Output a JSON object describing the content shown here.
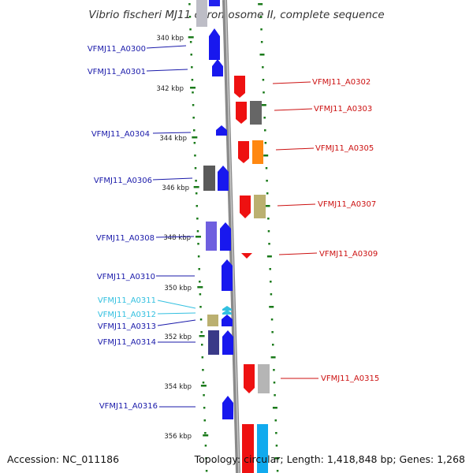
{
  "title": "Vibrio fischeri MJ11 chromosome II, complete sequence",
  "accession": "Accession: NC_011186",
  "summary": "Topology: circular; Length: 1,418,848 bp; Genes: 1,268",
  "colors": {
    "forward_label": "#1a1aaa",
    "reverse_label": "#cc1111",
    "highlight_label": "#33c0e0",
    "backbone": "#8a8a8a",
    "tick": "#1a7a1a"
  },
  "kbp_labels": [
    "340 kbp",
    "342 kbp",
    "344 kbp",
    "346 kbp",
    "348 kbp",
    "350 kbp",
    "352 kbp",
    "354 kbp",
    "356 kbp"
  ],
  "genes_left": [
    {
      "id": "VFMJ11_A0300"
    },
    {
      "id": "VFMJ11_A0301"
    },
    {
      "id": "VFMJ11_A0304"
    },
    {
      "id": "VFMJ11_A0306"
    },
    {
      "id": "VFMJ11_A0308"
    },
    {
      "id": "VFMJ11_A0310"
    },
    {
      "id": "VFMJ11_A0311"
    },
    {
      "id": "VFMJ11_A0312"
    },
    {
      "id": "VFMJ11_A0313"
    },
    {
      "id": "VFMJ11_A0314"
    },
    {
      "id": "VFMJ11_A0316"
    }
  ],
  "genes_right": [
    {
      "id": "VFMJ11_A0302"
    },
    {
      "id": "VFMJ11_A0303"
    },
    {
      "id": "VFMJ11_A0305"
    },
    {
      "id": "VFMJ11_A0307"
    },
    {
      "id": "VFMJ11_A0309"
    },
    {
      "id": "VFMJ11_A0315"
    }
  ]
}
